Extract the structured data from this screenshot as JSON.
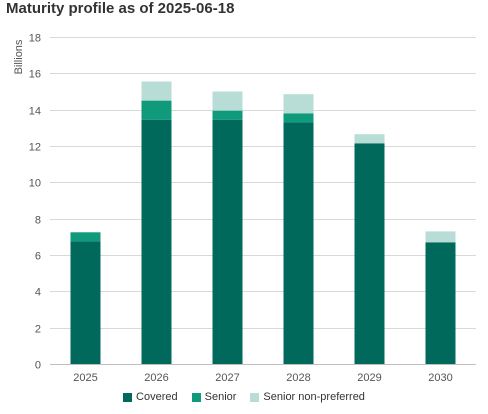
{
  "chart_data": {
    "type": "bar",
    "stacked": true,
    "title": "Maturity profile as of 2025-06-18",
    "ylabel": "Billions",
    "xlabel": "",
    "categories": [
      "2025",
      "2026",
      "2027",
      "2028",
      "2029",
      "2030"
    ],
    "series": [
      {
        "name": "Covered",
        "color": "#00695c",
        "values": [
          6.75,
          13.45,
          13.45,
          13.3,
          12.15,
          6.7
        ]
      },
      {
        "name": "Senior",
        "color": "#0e9a7b",
        "values": [
          0.5,
          1.05,
          0.5,
          0.5,
          0,
          0
        ]
      },
      {
        "name": "Senior non-preferred",
        "color": "#b7ddd6",
        "values": [
          0,
          1.05,
          1.05,
          1.05,
          0.5,
          0.6
        ]
      }
    ],
    "ylim": [
      0,
      18
    ],
    "yticks": [
      0,
      2,
      4,
      6,
      8,
      10,
      12,
      14,
      16,
      18
    ],
    "grid": true,
    "legend_position": "bottom"
  }
}
